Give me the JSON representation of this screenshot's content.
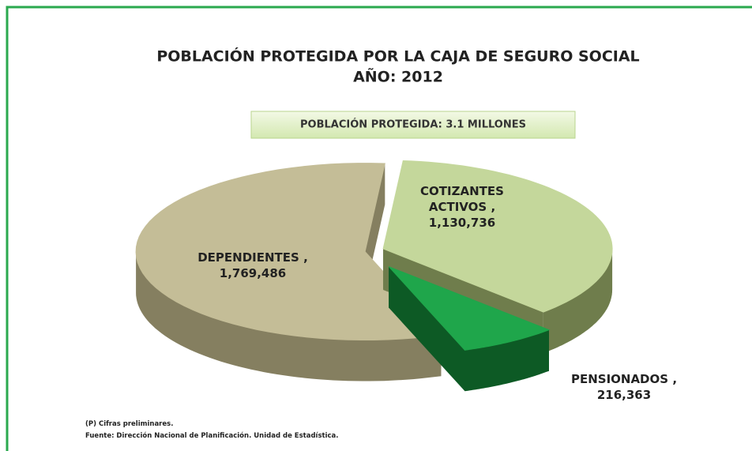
{
  "chart_data": {
    "type": "pie3d",
    "title": [
      "POBLACIÓN PROTEGIDA POR LA CAJA DE SEGURO SOCIAL",
      "AÑO: 2012"
    ],
    "subtitle": "POBLACIÓN PROTEGIDA: 3.1 MILLONES",
    "categories": [
      "COTIZANTES ACTIVOS",
      "PENSIONADOS",
      "DEPENDIENTES"
    ],
    "values": [
      1130736,
      216363,
      1769486
    ],
    "value_labels": [
      "1,130,736",
      "216,363",
      "1,769,486"
    ],
    "label_separator": ",",
    "colors": [
      "#c4d79b",
      "#1fa64b",
      "#c4bd97"
    ],
    "side_colors": [
      "#6f7d4c",
      "#0d5a25",
      "#857f60"
    ],
    "notes": [
      "(P) Cifras preliminares.",
      "Fuente:  Dirección Nacional de Planificación.  Unidad de Estadística."
    ]
  }
}
